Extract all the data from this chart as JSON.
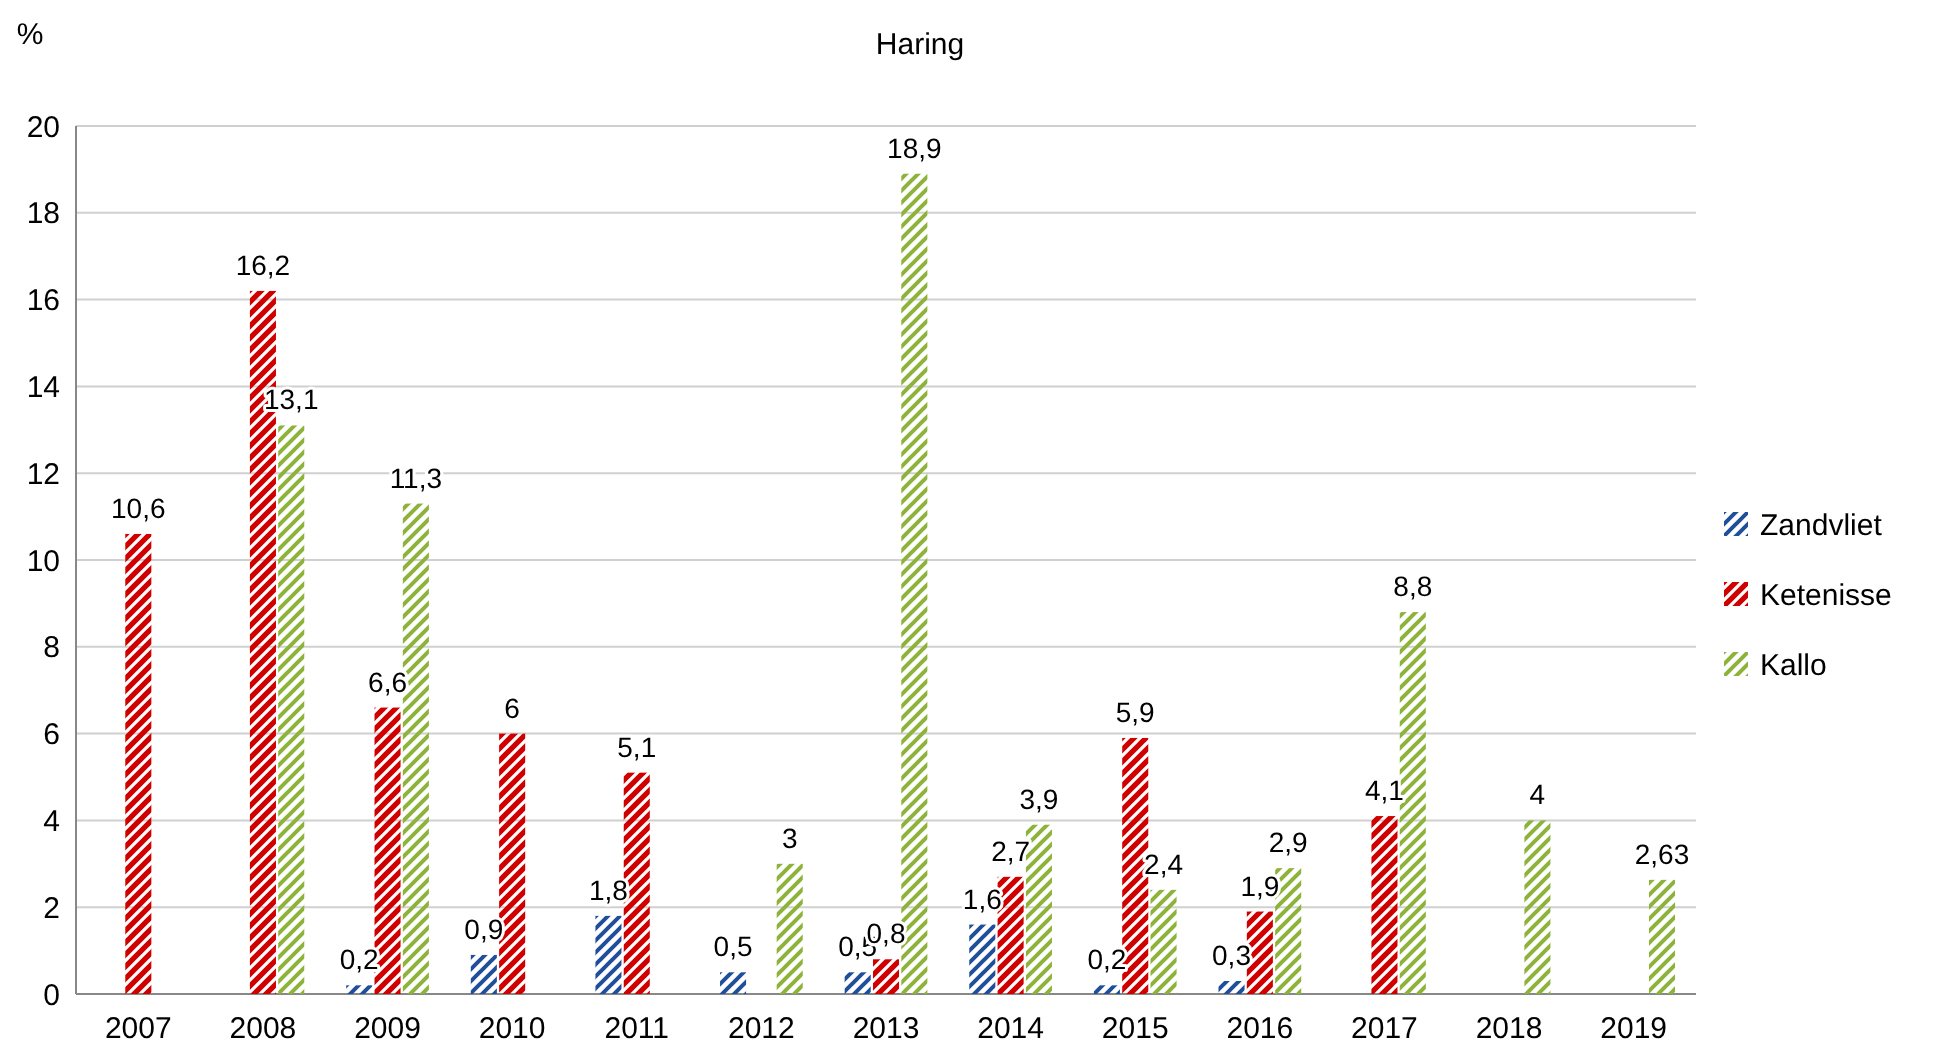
{
  "chart_data": {
    "type": "bar",
    "title": "Haring",
    "ylabel": "%",
    "categories": [
      "2007",
      "2008",
      "2009",
      "2010",
      "2011",
      "2012",
      "2013",
      "2014",
      "2015",
      "2016",
      "2017",
      "2018",
      "2019"
    ],
    "series": [
      {
        "name": "Zandvliet",
        "color": "#1f4e9a",
        "values": [
          null,
          null,
          0.2,
          0.9,
          1.8,
          0.5,
          0.5,
          1.6,
          0.2,
          0.3,
          null,
          null,
          null
        ],
        "value_labels": [
          null,
          null,
          "0,2",
          "0,9",
          "1,8",
          "0,5",
          "0,5",
          "1,6",
          "0,2",
          "0,3",
          null,
          null,
          null
        ]
      },
      {
        "name": "Ketenisse",
        "color": "#d00000",
        "values": [
          10.6,
          16.2,
          6.6,
          6,
          5.1,
          null,
          0.8,
          2.7,
          5.9,
          1.9,
          4.1,
          null,
          null
        ],
        "value_labels": [
          "10,6",
          "16,2",
          "6,6",
          "6",
          "5,1",
          null,
          "0,8",
          "2,7",
          "5,9",
          "1,9",
          "4,1",
          null,
          null
        ]
      },
      {
        "name": "Kallo",
        "color": "#8db33a",
        "values": [
          null,
          13.1,
          11.3,
          null,
          null,
          3,
          18.9,
          3.9,
          2.4,
          2.9,
          8.8,
          4,
          2.63
        ],
        "value_labels": [
          null,
          "13,1",
          "11,3",
          null,
          null,
          "3",
          "18,9",
          "3,9",
          "2,4",
          "2,9",
          "8,8",
          "4",
          "2,63"
        ]
      }
    ],
    "ylim": [
      0,
      20
    ],
    "yticks": [
      0,
      2,
      4,
      6,
      8,
      10,
      12,
      14,
      16,
      18,
      20
    ],
    "grid": "y",
    "legend": "right"
  }
}
